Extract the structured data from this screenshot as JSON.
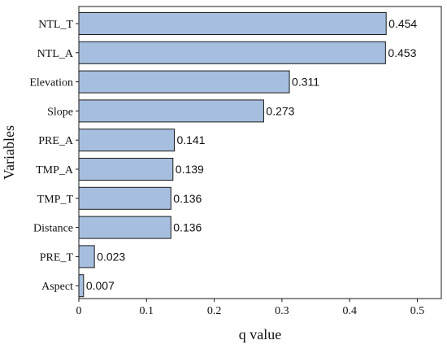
{
  "chart_data": {
    "type": "bar",
    "orientation": "horizontal",
    "categories": [
      "NTL_T",
      "NTL_A",
      "Elevation",
      "Slope",
      "PRE_A",
      "TMP_A",
      "TMP_T",
      "Distance",
      "PRE_T",
      "Aspect"
    ],
    "values": [
      0.454,
      0.453,
      0.311,
      0.273,
      0.141,
      0.139,
      0.136,
      0.136,
      0.023,
      0.007
    ],
    "value_labels": [
      "0.454",
      "0.453",
      "0.311",
      "0.273",
      "0.141",
      "0.139",
      "0.136",
      "0.136",
      "0.023",
      "0.007"
    ],
    "xlabel": "q value",
    "ylabel": "Variables",
    "xlim": [
      0,
      0.5
    ],
    "xticks": [
      0,
      0.1,
      0.2,
      0.3,
      0.4,
      0.5
    ],
    "xtick_labels": [
      "0",
      "0.1",
      "0.2",
      "0.3",
      "0.4",
      "0.5"
    ],
    "grid": false,
    "bar_color": "#a6bfdf",
    "bar_edge_color": "#1a1a1a"
  }
}
